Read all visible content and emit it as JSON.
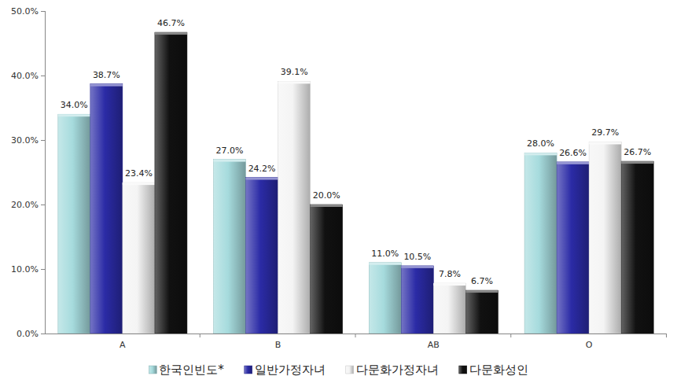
{
  "chart_data": {
    "type": "bar",
    "categories": [
      "A",
      "B",
      "AB",
      "O"
    ],
    "series": [
      {
        "name": "한국인빈도*",
        "color": "#a6dbdd",
        "values": [
          34.0,
          27.0,
          11.0,
          28.0
        ],
        "value_labels": [
          "34.0%",
          "27.0%",
          "11.0%",
          "28.0%"
        ]
      },
      {
        "name": "일반가정자녀",
        "color": "#2b2ba6",
        "values": [
          38.7,
          24.2,
          10.5,
          26.6
        ],
        "value_labels": [
          "38.7%",
          "24.2%",
          "10.5%",
          "26.6%"
        ]
      },
      {
        "name": "다문화가정자녀",
        "color": "#f4f4f4",
        "values": [
          23.4,
          39.1,
          7.8,
          29.7
        ],
        "value_labels": [
          "23.4%",
          "39.1%",
          "7.8%",
          "29.7%"
        ]
      },
      {
        "name": "다문화성인",
        "color": "#111111",
        "values": [
          46.7,
          20.0,
          6.7,
          26.7
        ],
        "value_labels": [
          "46.7%",
          "20.0%",
          "6.7%",
          "26.7%"
        ]
      }
    ],
    "ylim": [
      0,
      50
    ],
    "yticks": [
      {
        "value": 0,
        "label": "0.0%"
      },
      {
        "value": 10,
        "label": "10.0%"
      },
      {
        "value": 20,
        "label": "20.0%"
      },
      {
        "value": 30,
        "label": "30.0%"
      },
      {
        "value": 40,
        "label": "40.0%"
      },
      {
        "value": 50,
        "label": "50.0%"
      }
    ],
    "grid": false,
    "legend": "bottom",
    "data_labels": true
  }
}
